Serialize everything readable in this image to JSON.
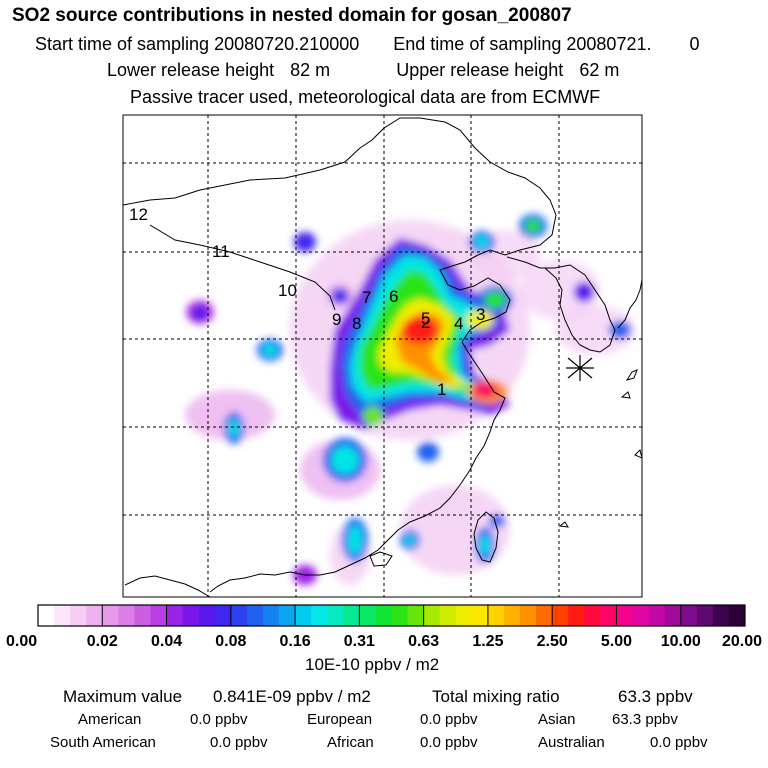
{
  "header": {
    "title": "SO2 source contributions in nested domain for gosan_200807",
    "sampling_start_label": "Start time of sampling",
    "sampling_start_value": "20080720.210000",
    "sampling_end_label": "End time of sampling",
    "sampling_end_value": "20080721.",
    "sampling_end_hour": "0",
    "lower_release_label": "Lower release height",
    "lower_release_value": "82 m",
    "upper_release_label": "Upper release height",
    "upper_release_value": "62 m",
    "tracer_note": "Passive tracer used, meteorological data are from ECMWF"
  },
  "chart_data": {
    "type": "heatmap",
    "title": "SO2 source contributions in nested domain for gosan_200807",
    "units": "10E-10 ppbv / m2",
    "grid": true,
    "receptor": "gosan",
    "color_scale": {
      "labels": [
        "0.00",
        "0.02",
        "0.04",
        "0.08",
        "0.16",
        "0.31",
        "0.63",
        "1.25",
        "2.50",
        "5.00",
        "10.00",
        "20.00"
      ],
      "bins_per_interval": 4,
      "colors": [
        "#ffffff",
        "#fbe6fb",
        "#f5cdf5",
        "#eeb2f0",
        "#e79ae9",
        "#dc7ee6",
        "#cc5ee4",
        "#b73fe3",
        "#9c22e6",
        "#7a16ea",
        "#5a18ee",
        "#3f26f0",
        "#2d42ee",
        "#1f62ee",
        "#1483ef",
        "#0ba6f0",
        "#02cbf2",
        "#05e6e6",
        "#06e9c1",
        "#06ea92",
        "#09e865",
        "#10e536",
        "#2ce315",
        "#67e40b",
        "#a6e905",
        "#d0ec00",
        "#f0ee00",
        "#fde700",
        "#ffd200",
        "#ffb300",
        "#ff9000",
        "#ff6b00",
        "#ff4200",
        "#ff1b12",
        "#fe0a3c",
        "#fd0466",
        "#f5038a",
        "#df06a1",
        "#c308a8",
        "#a00a9c",
        "#7e0a8d",
        "#5e0870",
        "#3d034f",
        "#2a0036"
      ]
    },
    "source_regions": [
      {
        "id": "1"
      },
      {
        "id": "2"
      },
      {
        "id": "3"
      },
      {
        "id": "4"
      },
      {
        "id": "5"
      },
      {
        "id": "6"
      },
      {
        "id": "7"
      },
      {
        "id": "8"
      },
      {
        "id": "9"
      },
      {
        "id": "10"
      },
      {
        "id": "11"
      },
      {
        "id": "12"
      }
    ]
  },
  "stats": {
    "max_label": "Maximum value",
    "max_value": "0.841E-09 ppbv / m2",
    "total_label": "Total mixing ratio",
    "total_value": "63.3 ppbv",
    "american_label": "American",
    "american_value": "0.0 ppbv",
    "european_label": "European",
    "european_value": "0.0 ppbv",
    "asian_label": "Asian",
    "asian_value": "63.3 ppbv",
    "south_american_label": "South American",
    "south_american_value": "0.0 ppbv",
    "african_label": "African",
    "african_value": "0.0 ppbv",
    "australian_label": "Australian",
    "australian_value": "0.0 ppbv"
  }
}
